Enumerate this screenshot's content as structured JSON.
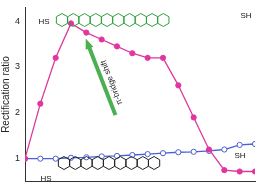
{
  "chart_data": {
    "type": "line",
    "y_label": "Rectification ratio",
    "x": [
      1,
      2,
      3,
      4,
      5,
      6,
      7,
      8,
      9,
      10,
      11,
      12,
      13,
      14,
      15,
      16
    ],
    "xlim": [
      1,
      16
    ],
    "ylim": [
      0.5,
      4.3
    ],
    "yticks": [
      1,
      2,
      3,
      4
    ],
    "grid": false,
    "tick_labels": "y",
    "series": [
      {
        "color": "#e0369e",
        "marker": "filled_circle",
        "line_style": "solid",
        "values": [
          1.0,
          2.2,
          3.2,
          3.95,
          3.75,
          3.6,
          3.45,
          3.3,
          3.2,
          3.2,
          2.6,
          1.9,
          1.2,
          0.75,
          0.72,
          0.72
        ]
      },
      {
        "color": "#4a5fd8",
        "marker": "open_circle",
        "line_style": "solid",
        "values": [
          1.0,
          1.0,
          1.0,
          1.02,
          1.03,
          1.05,
          1.06,
          1.08,
          1.1,
          1.12,
          1.14,
          1.15,
          1.17,
          1.2,
          1.3,
          1.32
        ]
      }
    ],
    "annotations": [
      {
        "text": "π-bridge shift",
        "color": "#4caf50"
      }
    ],
    "molecules": [
      {
        "left": "HS",
        "right": "SH",
        "color": "#2e9e3a"
      },
      {
        "left": "HS",
        "right": "SH",
        "color": "#222222"
      }
    ]
  }
}
